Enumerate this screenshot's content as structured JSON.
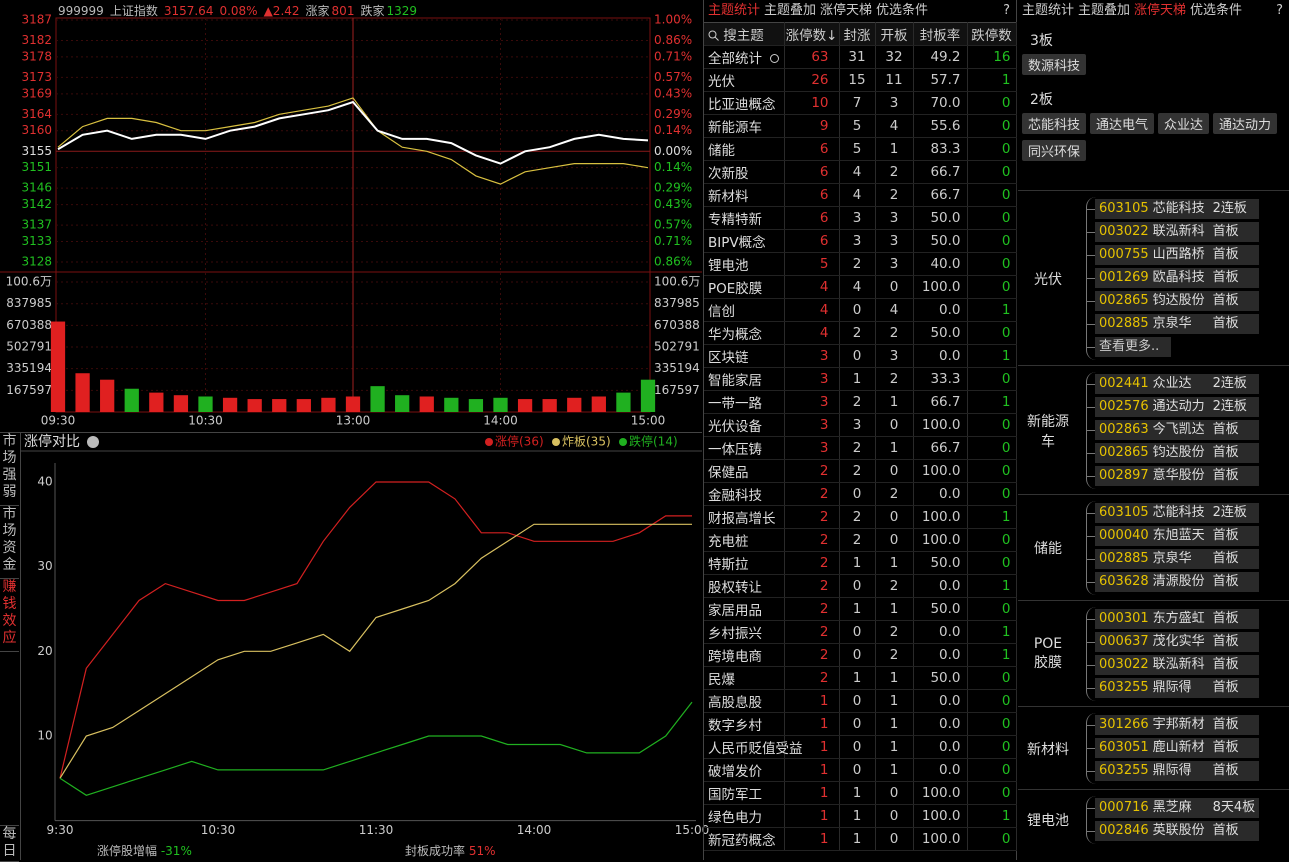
{
  "quote_chart": {
    "header": {
      "code": "999999",
      "name": "上证指数",
      "price": "3157.64",
      "pct": "0.08%",
      "change": "▲2.42",
      "up_label": "涨家",
      "up": "801",
      "down_label": "跌家",
      "down": "1329"
    },
    "price_ticks": [
      3187,
      3182,
      3178,
      3173,
      3169,
      3164,
      3160,
      3155,
      3151,
      3146,
      3142,
      3137,
      3133,
      3128
    ],
    "pct_ticks": [
      "1.00%",
      "0.86%",
      "0.71%",
      "0.57%",
      "0.43%",
      "0.29%",
      "0.14%",
      "0.00%",
      "0.14%",
      "0.29%",
      "0.43%",
      "0.57%",
      "0.71%",
      "0.86%"
    ],
    "volume_ticks": [
      {
        "value": 1006000,
        "label": "100.6万"
      },
      837985,
      670388,
      502791,
      335194,
      167597
    ],
    "time_labels": [
      "09:30",
      "10:30",
      "13:00",
      "14:00",
      "15:00"
    ],
    "price": [
      3155.5,
      3159,
      3160,
      3158,
      3159,
      3159,
      3158,
      3160,
      3161,
      3163,
      3164,
      3165,
      3167,
      3160,
      3158,
      3158,
      3157,
      3154,
      3152,
      3155,
      3156,
      3158,
      3159,
      3158,
      3157.64
    ],
    "average": [
      3156,
      3161,
      3163,
      3163,
      3162,
      3160,
      3160,
      3161,
      3162,
      3164,
      3165,
      3166,
      3168,
      3160,
      3156,
      3155,
      3153,
      3149,
      3147,
      3150,
      3151,
      3152,
      3152,
      3152,
      3151
    ],
    "volume": [
      700000,
      300000,
      250000,
      180000,
      150000,
      130000,
      120000,
      110000,
      100000,
      100000,
      100000,
      110000,
      120000,
      200000,
      130000,
      120000,
      110000,
      100000,
      110000,
      100000,
      100000,
      110000,
      120000,
      150000,
      250000
    ]
  },
  "limit_chart": {
    "tabs": [
      "市场强弱",
      "市场资金",
      "赚钱效应",
      "每日"
    ],
    "title": "涨停对比",
    "yticks": [
      10,
      20,
      30,
      40
    ],
    "time_labels": [
      "9:30",
      "10:30",
      "11:30",
      "14:00",
      "15:00"
    ],
    "series": [
      {
        "name": "涨停(36)",
        "color": "#d22020",
        "values": [
          5,
          18,
          22,
          26,
          28,
          27,
          26,
          26,
          27,
          28,
          33,
          37,
          40,
          40,
          40,
          38,
          34,
          34,
          33,
          33,
          33,
          33,
          34,
          36,
          36
        ]
      },
      {
        "name": "炸板(35)",
        "color": "#d8c060",
        "values": [
          5,
          10,
          11,
          13,
          15,
          17,
          19,
          20,
          20,
          21,
          22,
          20,
          24,
          25,
          26,
          28,
          31,
          33,
          35,
          35,
          35,
          35,
          35,
          35,
          35
        ]
      },
      {
        "name": "跌停(14)",
        "color": "#20b020",
        "values": [
          5,
          3,
          4,
          5,
          6,
          7,
          6,
          6,
          6,
          6,
          6,
          7,
          8,
          9,
          10,
          10,
          10,
          9,
          9,
          9,
          8,
          8,
          8,
          10,
          14
        ]
      }
    ],
    "footer": [
      {
        "label": "涨停股增幅",
        "value": "-31%"
      },
      {
        "label": "封板成功率",
        "value": "51%"
      }
    ]
  },
  "theme_table": {
    "tabs": [
      "主题统计",
      "主题叠加",
      "涨停天梯",
      "优选条件"
    ],
    "help": "?",
    "search": "搜主题",
    "headers": [
      "涨停数↓",
      "封涨",
      "开板",
      "封板率",
      "跌停数"
    ],
    "rows": [
      [
        "全部统计",
        "63",
        "31",
        "32",
        "49.2",
        "16"
      ],
      [
        "光伏",
        "26",
        "15",
        "11",
        "57.7",
        "1"
      ],
      [
        "比亚迪概念",
        "10",
        "7",
        "3",
        "70.0",
        "0"
      ],
      [
        "新能源车",
        "9",
        "5",
        "4",
        "55.6",
        "0"
      ],
      [
        "储能",
        "6",
        "5",
        "1",
        "83.3",
        "0"
      ],
      [
        "次新股",
        "6",
        "4",
        "2",
        "66.7",
        "0"
      ],
      [
        "新材料",
        "6",
        "4",
        "2",
        "66.7",
        "0"
      ],
      [
        "专精特新",
        "6",
        "3",
        "3",
        "50.0",
        "0"
      ],
      [
        "BIPV概念",
        "6",
        "3",
        "3",
        "50.0",
        "0"
      ],
      [
        "锂电池",
        "5",
        "2",
        "3",
        "40.0",
        "0"
      ],
      [
        "POE胶膜",
        "4",
        "4",
        "0",
        "100.0",
        "0"
      ],
      [
        "信创",
        "4",
        "0",
        "4",
        "0.0",
        "1"
      ],
      [
        "华为概念",
        "4",
        "2",
        "2",
        "50.0",
        "0"
      ],
      [
        "区块链",
        "3",
        "0",
        "3",
        "0.0",
        "1"
      ],
      [
        "智能家居",
        "3",
        "1",
        "2",
        "33.3",
        "0"
      ],
      [
        "一带一路",
        "3",
        "2",
        "1",
        "66.7",
        "1"
      ],
      [
        "光伏设备",
        "3",
        "3",
        "0",
        "100.0",
        "0"
      ],
      [
        "一体压铸",
        "3",
        "2",
        "1",
        "66.7",
        "0"
      ],
      [
        "保健品",
        "2",
        "2",
        "0",
        "100.0",
        "0"
      ],
      [
        "金融科技",
        "2",
        "0",
        "2",
        "0.0",
        "0"
      ],
      [
        "财报高增长",
        "2",
        "2",
        "0",
        "100.0",
        "1"
      ],
      [
        "充电桩",
        "2",
        "2",
        "0",
        "100.0",
        "0"
      ],
      [
        "特斯拉",
        "2",
        "1",
        "1",
        "50.0",
        "0"
      ],
      [
        "股权转让",
        "2",
        "0",
        "2",
        "0.0",
        "1"
      ],
      [
        "家居用品",
        "2",
        "1",
        "1",
        "50.0",
        "0"
      ],
      [
        "乡村振兴",
        "2",
        "0",
        "2",
        "0.0",
        "1"
      ],
      [
        "跨境电商",
        "2",
        "0",
        "2",
        "0.0",
        "1"
      ],
      [
        "民爆",
        "2",
        "1",
        "1",
        "50.0",
        "0"
      ],
      [
        "高股息股",
        "1",
        "0",
        "1",
        "0.0",
        "0"
      ],
      [
        "数字乡村",
        "1",
        "0",
        "1",
        "0.0",
        "0"
      ],
      [
        "人民币贬值受益",
        "1",
        "0",
        "1",
        "0.0",
        "0"
      ],
      [
        "破增发价",
        "1",
        "0",
        "1",
        "0.0",
        "0"
      ],
      [
        "国防军工",
        "1",
        "1",
        "0",
        "100.0",
        "0"
      ],
      [
        "绿色电力",
        "1",
        "1",
        "0",
        "100.0",
        "1"
      ],
      [
        "新冠药概念",
        "1",
        "1",
        "0",
        "100.0",
        "0"
      ]
    ]
  },
  "ladder": {
    "tabs": [
      "主题统计",
      "主题叠加",
      "涨停天梯",
      "优选条件"
    ],
    "help": "?",
    "levels": [
      {
        "label": "3板",
        "stocks": [
          "数源科技"
        ]
      },
      {
        "label": "2板",
        "stocks": [
          "芯能科技",
          "通达电气",
          "众业达",
          "通达动力",
          "同兴环保"
        ]
      }
    ],
    "groups": [
      {
        "name": "光伏",
        "stocks": [
          {
            "code": "603105",
            "name": "芯能科技",
            "board": "2连板"
          },
          {
            "code": "003022",
            "name": "联泓新科",
            "board": "首板"
          },
          {
            "code": "000755",
            "name": "山西路桥",
            "board": "首板"
          },
          {
            "code": "001269",
            "name": "欧晶科技",
            "board": "首板"
          },
          {
            "code": "002865",
            "name": "钧达股份",
            "board": "首板"
          },
          {
            "code": "002885",
            "name": "京泉华",
            "board": "首板"
          }
        ],
        "more": "查看更多.."
      },
      {
        "name": "新能源车",
        "stocks": [
          {
            "code": "002441",
            "name": "众业达",
            "board": "2连板"
          },
          {
            "code": "002576",
            "name": "通达动力",
            "board": "2连板"
          },
          {
            "code": "002863",
            "name": "今飞凯达",
            "board": "首板"
          },
          {
            "code": "002865",
            "name": "钧达股份",
            "board": "首板"
          },
          {
            "code": "002897",
            "name": "意华股份",
            "board": "首板"
          }
        ]
      },
      {
        "name": "储能",
        "stocks": [
          {
            "code": "603105",
            "name": "芯能科技",
            "board": "2连板"
          },
          {
            "code": "000040",
            "name": "东旭蓝天",
            "board": "首板"
          },
          {
            "code": "002885",
            "name": "京泉华",
            "board": "首板"
          },
          {
            "code": "603628",
            "name": "清源股份",
            "board": "首板"
          }
        ]
      },
      {
        "name": "POE胶膜",
        "stocks": [
          {
            "code": "000301",
            "name": "东方盛虹",
            "board": "首板"
          },
          {
            "code": "000637",
            "name": "茂化实华",
            "board": "首板"
          },
          {
            "code": "003022",
            "name": "联泓新科",
            "board": "首板"
          },
          {
            "code": "603255",
            "name": "鼎际得",
            "board": "首板"
          }
        ]
      },
      {
        "name": "新材料",
        "stocks": [
          {
            "code": "301266",
            "name": "宇邦新材",
            "board": "首板"
          },
          {
            "code": "603051",
            "name": "鹿山新材",
            "board": "首板"
          },
          {
            "code": "603255",
            "name": "鼎际得",
            "board": "首板"
          }
        ]
      },
      {
        "name": "锂电池",
        "stocks": [
          {
            "code": "000716",
            "name": "黑芝麻",
            "board": "8天4板"
          },
          {
            "code": "002846",
            "name": "英联股份",
            "board": "首板"
          }
        ]
      }
    ]
  }
}
